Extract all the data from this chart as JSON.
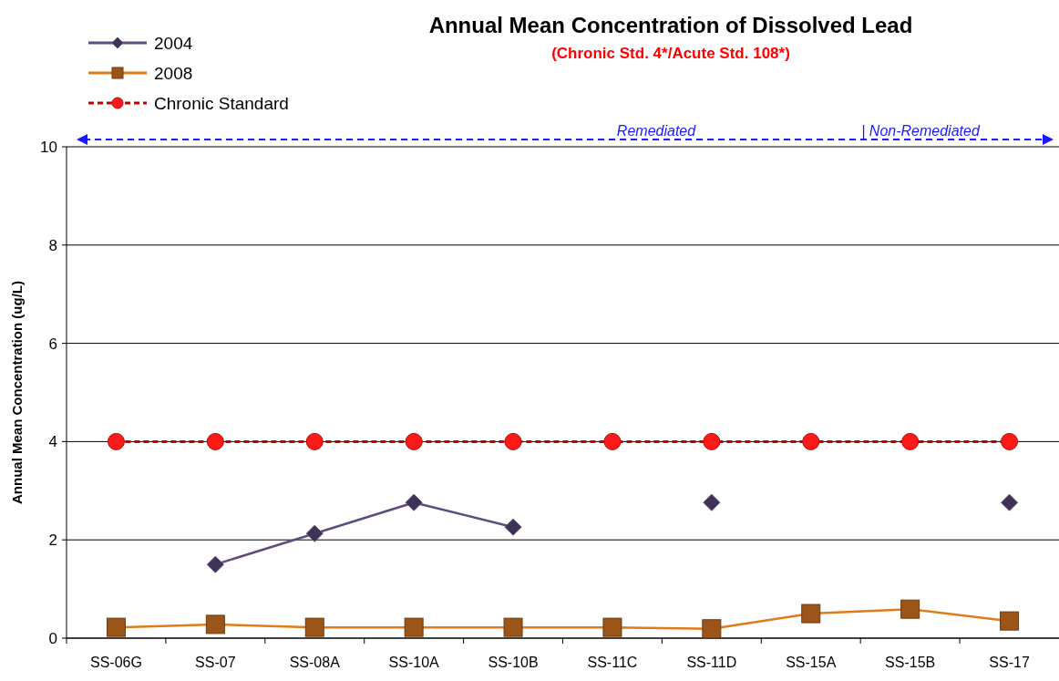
{
  "chart_data": {
    "type": "line",
    "title": "Annual Mean Concentration of Dissolved Lead",
    "subtitle": "(Chronic Std. 4*/Acute Std. 108*)",
    "ylabel": "Annual Mean Concentration (ug/L)",
    "categories": [
      "SS-06G",
      "SS-07",
      "SS-08A",
      "SS-10A",
      "SS-10B",
      "SS-11C",
      "SS-11D",
      "SS-15A",
      "SS-15B",
      "SS-17"
    ],
    "series": [
      {
        "name": "2004",
        "color": "#5f4b7d",
        "marker": "diamond",
        "line_style": "solid",
        "values": [
          null,
          1.5,
          2.13,
          2.76,
          2.26,
          null,
          2.76,
          null,
          null,
          2.76
        ]
      },
      {
        "name": "2008",
        "color": "#e07b1a",
        "marker": "square",
        "line_style": "solid",
        "values": [
          0.22,
          0.28,
          0.22,
          0.22,
          0.22,
          0.22,
          0.19,
          0.5,
          0.59,
          0.35
        ]
      },
      {
        "name": "Chronic Standard",
        "color": "#c00000",
        "marker": "circle",
        "line_style": "dashed",
        "values": [
          4,
          4,
          4,
          4,
          4,
          4,
          4,
          4,
          4,
          4
        ]
      }
    ],
    "ylim": [
      0,
      10
    ],
    "yticks": [
      0,
      2,
      4,
      6,
      8,
      10
    ],
    "grid": "y",
    "legend": "top left",
    "annotations": [
      "Remediated",
      "| Non-Remediated"
    ]
  }
}
